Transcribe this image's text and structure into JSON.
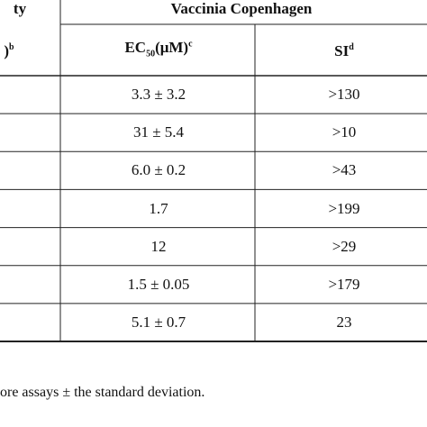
{
  "header": {
    "top_left": "ty",
    "group": "Vaccinia Copenhagen",
    "col_left": ")",
    "col_left_sup": "b",
    "col_ec": "EC",
    "col_ec_sub": "50",
    "col_ec_unit": "(μM)",
    "col_ec_sup": "c",
    "col_si": "SI",
    "col_si_sup": "d"
  },
  "table": {
    "rows": [
      [
        "3.3 ± 3.2",
        ">130"
      ],
      [
        "31 ± 5.4",
        ">10"
      ],
      [
        "6.0 ± 0.2",
        ">43"
      ],
      [
        "1.7",
        ">199"
      ],
      [
        "12",
        ">29"
      ],
      [
        "1.5 ± 0.05",
        ">179"
      ],
      [
        "5.1 ± 0.7",
        "23"
      ]
    ]
  },
  "footnote": "ore assays ± the standard deviation."
}
